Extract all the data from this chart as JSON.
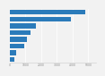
{
  "values": [
    4800,
    3900,
    1650,
    1300,
    1100,
    900,
    380,
    290
  ],
  "bar_color": "#2b7bba",
  "background_color": "#f2f2f2",
  "grid_color": "#ffffff",
  "xlim": [
    0,
    5500
  ],
  "xticks": [
    0,
    1000,
    2000,
    3000,
    4000,
    5000
  ],
  "bar_height": 0.72
}
